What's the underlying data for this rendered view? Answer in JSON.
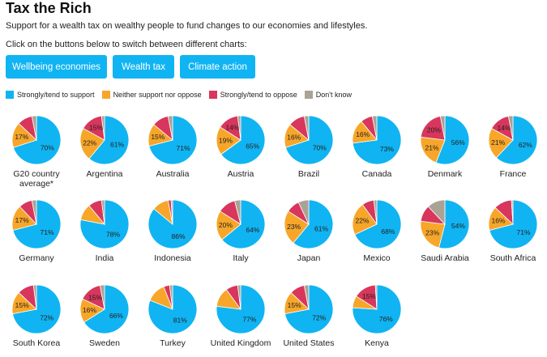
{
  "header": {
    "title": "Tax the Rich",
    "subtitle": "Support for a wealth tax on wealthy people to fund changes to our economies and lifestyles.",
    "instruction": "Click on the buttons below to switch between different charts:"
  },
  "buttons": [
    "Wellbeing economies",
    "Wealth tax",
    "Climate action"
  ],
  "colors": {
    "support": "#10b4f2",
    "neutral": "#f7a629",
    "oppose": "#d8365c",
    "dont_know": "#aaa295",
    "button": "#10b4f2"
  },
  "legend": [
    {
      "label": "Strongly/tend to support",
      "color": "#10b4f2"
    },
    {
      "label": "Neither support nor oppose",
      "color": "#f7a629"
    },
    {
      "label": "Strongly/tend to oppose",
      "color": "#d8365c"
    },
    {
      "label": "Don't know",
      "color": "#aaa295"
    }
  ],
  "chart_data": {
    "type": "pie",
    "segment_order": [
      "Strongly/tend to support",
      "Neither support nor oppose",
      "Strongly/tend to oppose",
      "Don't know"
    ],
    "charts": [
      {
        "name": "G20 country average*",
        "values": [
          70,
          17,
          10,
          3
        ],
        "labels": [
          "70%",
          "17%",
          "",
          ""
        ]
      },
      {
        "name": "Argentina",
        "values": [
          61,
          22,
          15,
          2
        ],
        "labels": [
          "61%",
          "22%",
          "15%",
          ""
        ]
      },
      {
        "name": "Australia",
        "values": [
          71,
          15,
          11,
          3
        ],
        "labels": [
          "71%",
          "15%",
          "",
          ""
        ]
      },
      {
        "name": "Austria",
        "values": [
          65,
          19,
          14,
          2
        ],
        "labels": [
          "65%",
          "19%",
          "14%",
          ""
        ]
      },
      {
        "name": "Brazil",
        "values": [
          70,
          16,
          11,
          3
        ],
        "labels": [
          "70%",
          "16%",
          "",
          ""
        ]
      },
      {
        "name": "Canada",
        "values": [
          73,
          16,
          8,
          3
        ],
        "labels": [
          "73%",
          "16%",
          "",
          ""
        ]
      },
      {
        "name": "Denmark",
        "values": [
          56,
          21,
          20,
          3
        ],
        "labels": [
          "56%",
          "21%",
          "20%",
          ""
        ]
      },
      {
        "name": "France",
        "values": [
          62,
          21,
          14,
          3
        ],
        "labels": [
          "62%",
          "21%",
          "14%",
          ""
        ]
      },
      {
        "name": "Germany",
        "values": [
          71,
          17,
          9,
          3
        ],
        "labels": [
          "71%",
          "17%",
          "",
          ""
        ]
      },
      {
        "name": "India",
        "values": [
          78,
          11,
          9,
          2
        ],
        "labels": [
          "78%",
          "",
          "",
          ""
        ]
      },
      {
        "name": "Indonesia",
        "values": [
          86,
          11,
          2,
          1
        ],
        "labels": [
          "86%",
          "",
          "",
          ""
        ]
      },
      {
        "name": "Italy",
        "values": [
          64,
          20,
          12,
          4
        ],
        "labels": [
          "64%",
          "20%",
          "",
          ""
        ]
      },
      {
        "name": "Japan",
        "values": [
          61,
          23,
          9,
          7
        ],
        "labels": [
          "61%",
          "23%",
          "",
          ""
        ]
      },
      {
        "name": "Mexico",
        "values": [
          68,
          22,
          8,
          2
        ],
        "labels": [
          "68%",
          "22%",
          "",
          ""
        ]
      },
      {
        "name": "Saudi Arabia",
        "values": [
          54,
          23,
          11,
          12
        ],
        "labels": [
          "54%",
          "23%",
          "",
          ""
        ]
      },
      {
        "name": "South Africa",
        "values": [
          71,
          16,
          12,
          1
        ],
        "labels": [
          "71%",
          "16%",
          "",
          ""
        ]
      },
      {
        "name": "South Korea",
        "values": [
          72,
          15,
          11,
          2
        ],
        "labels": [
          "72%",
          "15%",
          "",
          ""
        ]
      },
      {
        "name": "Sweden",
        "values": [
          66,
          16,
          15,
          3
        ],
        "labels": [
          "66%",
          "16%",
          "15%",
          ""
        ]
      },
      {
        "name": "Turkey",
        "values": [
          81,
          13,
          4,
          2
        ],
        "labels": [
          "81%",
          "",
          "",
          ""
        ]
      },
      {
        "name": "United Kingdom",
        "values": [
          77,
          13,
          8,
          2
        ],
        "labels": [
          "77%",
          "",
          "",
          ""
        ]
      },
      {
        "name": "United States",
        "values": [
          72,
          15,
          10,
          3
        ],
        "labels": [
          "72%",
          "15%",
          "",
          ""
        ]
      },
      {
        "name": "Kenya",
        "values": [
          76,
          8,
          15,
          1
        ],
        "labels": [
          "76%",
          "",
          "15%",
          ""
        ]
      }
    ]
  }
}
